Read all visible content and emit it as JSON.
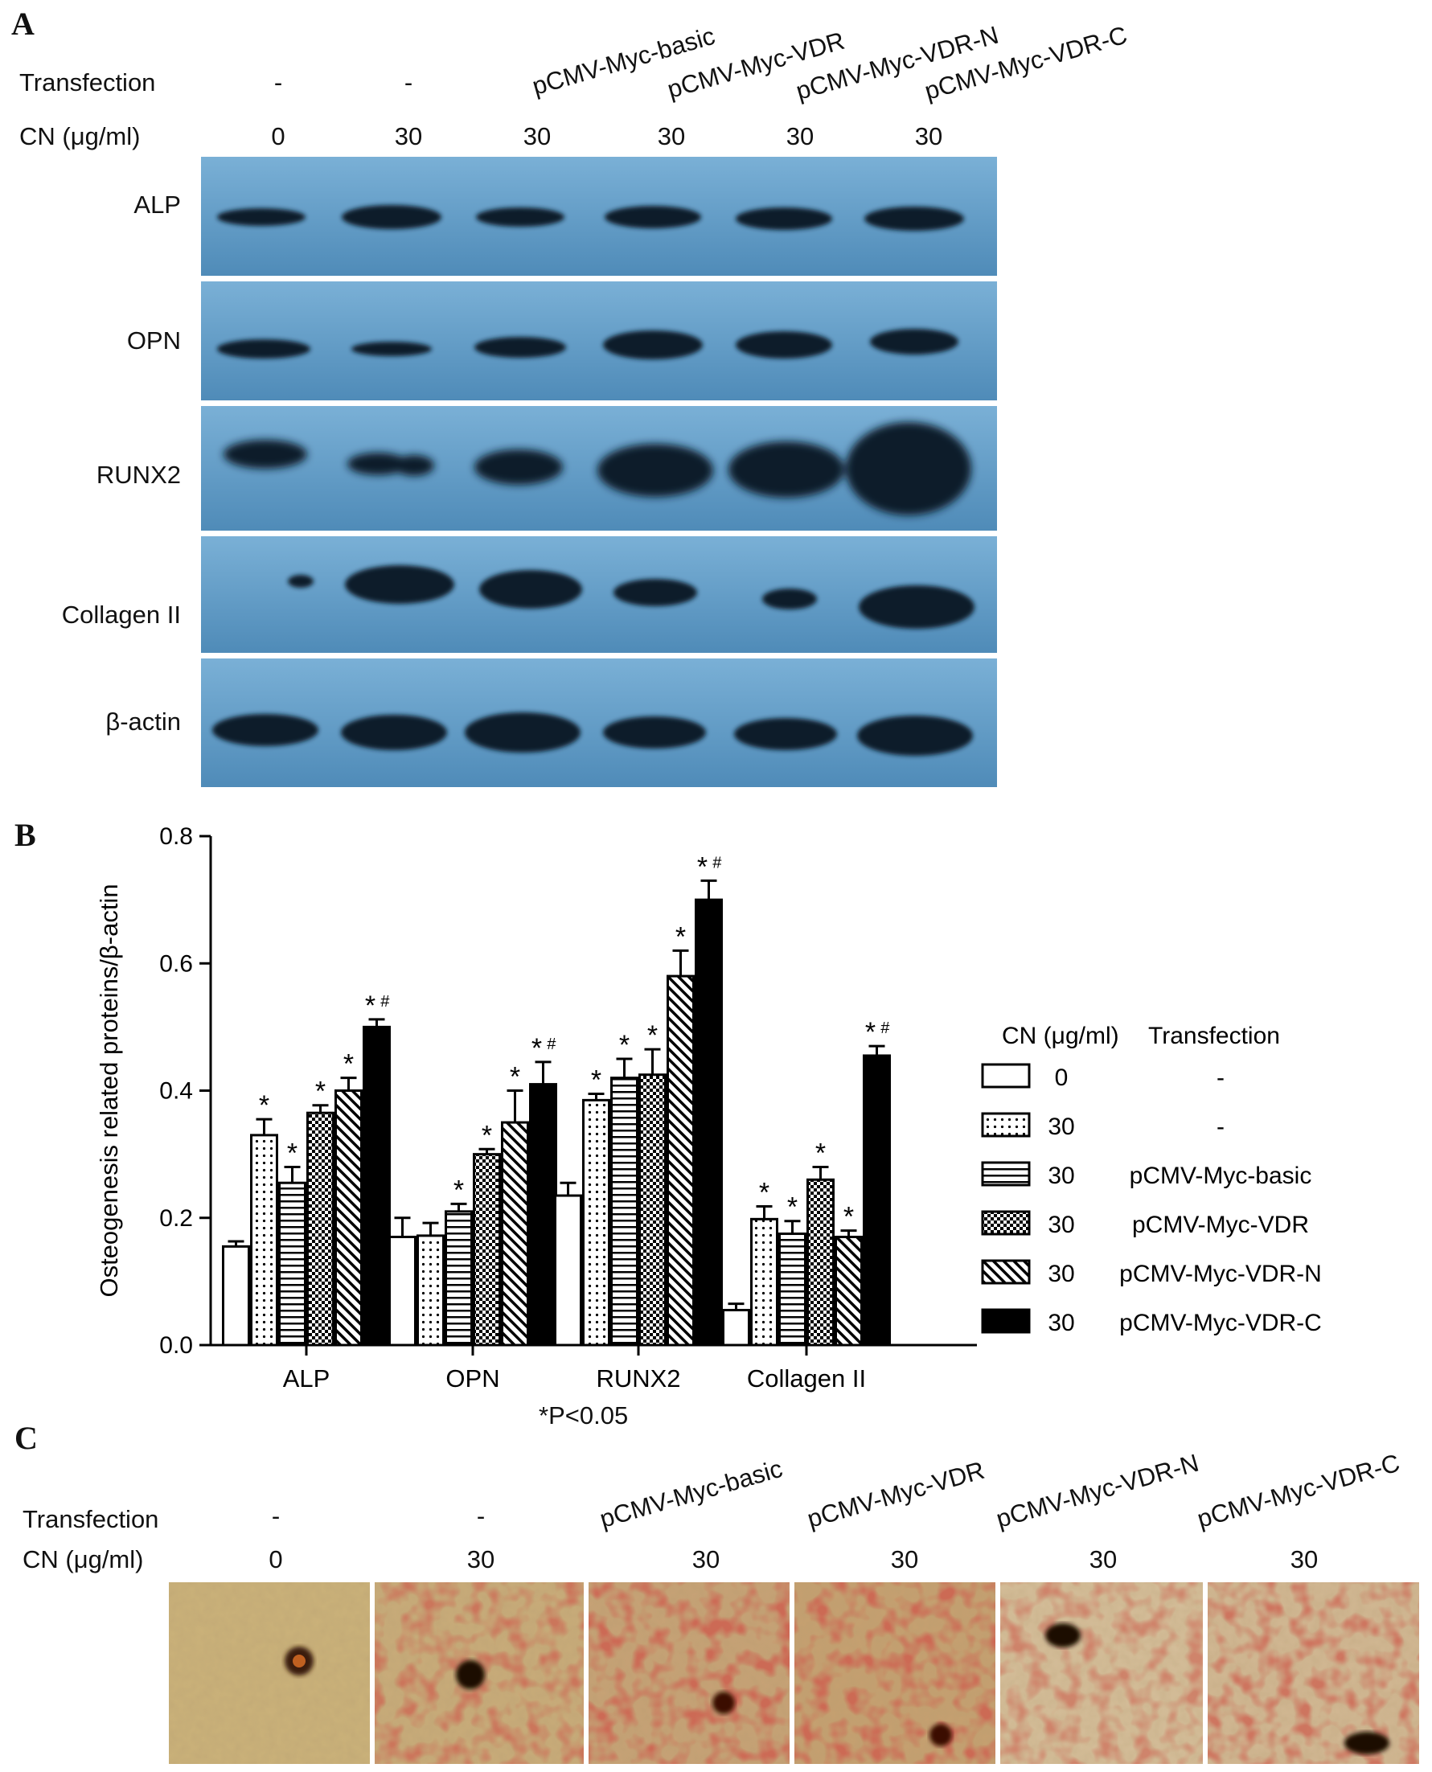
{
  "panels": {
    "a": "A",
    "b": "B",
    "c": "C"
  },
  "panel_a": {
    "transfection_label": "Transfection",
    "cn_label": "CN (μg/ml)",
    "lanes": [
      {
        "transfection": "-",
        "cn": "0"
      },
      {
        "transfection": "-",
        "cn": "30"
      },
      {
        "transfection": "pCMV-Myc-basic",
        "cn": "30"
      },
      {
        "transfection": "pCMV-Myc-VDR",
        "cn": "30"
      },
      {
        "transfection": "pCMV-Myc-VDR-N",
        "cn": "30"
      },
      {
        "transfection": "pCMV-Myc-VDR-C",
        "cn": "30"
      }
    ],
    "blots": [
      "ALP",
      "OPN",
      "RUNX2",
      "Collagen II",
      "β-actin"
    ]
  },
  "chart_data": {
    "type": "bar",
    "ylabel": "Osteogenesis related proteins/β-actin",
    "xlabel": "",
    "ylim": [
      0,
      0.8
    ],
    "yticks": [
      "0.0",
      "0.2",
      "0.4",
      "0.6",
      "0.8"
    ],
    "categories": [
      "ALP",
      "OPN",
      "RUNX2",
      "Collagen II"
    ],
    "series": [
      {
        "cn": "0",
        "transfection": "-",
        "pattern": "white",
        "values": [
          0.155,
          0.17,
          0.235,
          0.055
        ],
        "errors": [
          0.008,
          0.03,
          0.02,
          0.01
        ],
        "marks": [
          "",
          "",
          "",
          ""
        ]
      },
      {
        "cn": "30",
        "transfection": "-",
        "pattern": "dots",
        "values": [
          0.33,
          0.172,
          0.385,
          0.198
        ],
        "errors": [
          0.025,
          0.02,
          0.01,
          0.02
        ],
        "marks": [
          "*",
          "",
          "*",
          "*"
        ]
      },
      {
        "cn": "30",
        "transfection": "pCMV-Myc-basic",
        "pattern": "hlines",
        "values": [
          0.255,
          0.21,
          0.42,
          0.175
        ],
        "errors": [
          0.025,
          0.012,
          0.03,
          0.02
        ],
        "marks": [
          "*",
          "*",
          "*",
          "*"
        ]
      },
      {
        "cn": "30",
        "transfection": "pCMV-Myc-VDR",
        "pattern": "checker",
        "values": [
          0.365,
          0.3,
          0.425,
          0.26
        ],
        "errors": [
          0.012,
          0.008,
          0.04,
          0.02
        ],
        "marks": [
          "*",
          "*",
          "*",
          "*"
        ]
      },
      {
        "cn": "30",
        "transfection": "pCMV-Myc-VDR-N",
        "pattern": "diag",
        "values": [
          0.4,
          0.35,
          0.58,
          0.17
        ],
        "errors": [
          0.02,
          0.05,
          0.04,
          0.01
        ],
        "marks": [
          "*",
          "*",
          "*",
          "*"
        ]
      },
      {
        "cn": "30",
        "transfection": "pCMV-Myc-VDR-C",
        "pattern": "black",
        "values": [
          0.5,
          0.41,
          0.7,
          0.455
        ],
        "errors": [
          0.012,
          0.035,
          0.03,
          0.015
        ],
        "marks": [
          "*#",
          "*#",
          "*#",
          "*#"
        ]
      }
    ],
    "legend": {
      "placement": "right",
      "header_cn": "CN (μg/ml)",
      "header_transfection": "Transfection"
    },
    "footnote": "*P<0.05"
  },
  "panel_c": {
    "transfection_label": "Transfection",
    "cn_label": "CN (μg/ml)",
    "lanes": [
      {
        "transfection": "-",
        "cn": "0"
      },
      {
        "transfection": "-",
        "cn": "30"
      },
      {
        "transfection": "pCMV-Myc-basic",
        "cn": "30"
      },
      {
        "transfection": "pCMV-Myc-VDR",
        "cn": "30"
      },
      {
        "transfection": "pCMV-Myc-VDR-N",
        "cn": "30"
      },
      {
        "transfection": "pCMV-Myc-VDR-C",
        "cn": "30"
      }
    ]
  },
  "colors": {
    "blot_bg": "#5f9ac4",
    "band": "#0f1f2c",
    "stain_bg": "#c4a468",
    "stain_red": "#a8321e"
  }
}
